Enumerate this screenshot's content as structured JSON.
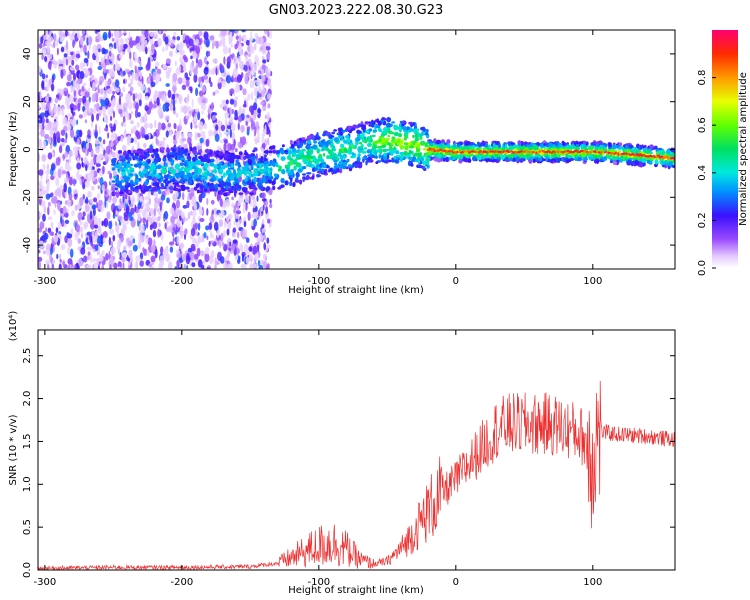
{
  "title": "GN03.2023.222.08.30.G23",
  "colors": {
    "snr_line": "#ee3030",
    "frame": "#000000"
  },
  "chart_data": [
    {
      "type": "heatmap",
      "xlabel": "Height of straight line (km)",
      "ylabel": "Frequency (Hz)",
      "xlim": [
        -305,
        160
      ],
      "ylim": [
        -50,
        50
      ],
      "xticks": [
        -300,
        -200,
        -100,
        0,
        100
      ],
      "xtick_labels": [
        "-300",
        "-200",
        "-100",
        "0",
        "100"
      ],
      "yticks": [
        -40,
        -20,
        0,
        20,
        40
      ],
      "ytick_labels": [
        "-40",
        "-20",
        "0",
        "20",
        "40"
      ],
      "colormap": "rainbow",
      "colorbar": {
        "label": "Normalized spectral amplitude",
        "range": [
          0,
          1
        ],
        "ticks": [
          0,
          0.2,
          0.4,
          0.6,
          0.8
        ],
        "tick_labels": [
          "0.0",
          "0.2",
          "0.4",
          "0.6",
          "0.8"
        ]
      },
      "ridge": {
        "x": [
          -250,
          -200,
          -170,
          -150,
          -120,
          -100,
          -80,
          -70,
          -60,
          -50,
          -30,
          -20,
          0,
          50,
          100,
          150,
          160
        ],
        "y": [
          -10,
          -8,
          -10,
          -10,
          -6,
          -2,
          0,
          2,
          3,
          4,
          2,
          0,
          -1,
          -1,
          -1,
          -3,
          -4
        ]
      },
      "grid": false
    },
    {
      "type": "line",
      "xlabel": "Height of straight line (km)",
      "ylabel": "SNR (10 * v/v)",
      "y_multiplier_label": "(x10⁴)",
      "xlim": [
        -305,
        160
      ],
      "ylim": [
        0,
        28000
      ],
      "xticks": [
        -300,
        -200,
        -100,
        0,
        100
      ],
      "xtick_labels": [
        "-300",
        "-200",
        "-100",
        "0",
        "100"
      ],
      "yticks": [
        0,
        5000,
        10000,
        15000,
        20000,
        25000
      ],
      "ytick_labels": [
        "0.0",
        "0.5",
        "1.0",
        "1.5",
        "2.0",
        "2.5"
      ],
      "series": [
        {
          "x": [
            -305,
            -250,
            -200,
            -150,
            -130,
            -115,
            -105,
            -100,
            -95,
            -90,
            -80,
            -70,
            -60,
            -50,
            -40,
            -30,
            -20,
            -10,
            0,
            10,
            20,
            30,
            40,
            50,
            60,
            70,
            80,
            90,
            95,
            98,
            100,
            102,
            105,
            110,
            120,
            130,
            140,
            150,
            160
          ],
          "y": [
            200,
            300,
            300,
            400,
            800,
            1800,
            2500,
            2800,
            3000,
            3200,
            2500,
            1200,
            700,
            1000,
            2500,
            4500,
            7000,
            9000,
            10500,
            12500,
            14500,
            16500,
            17000,
            17000,
            17000,
            17000,
            16500,
            16000,
            15000,
            14000,
            13000,
            15500,
            16200,
            16000,
            15800,
            15700,
            15600,
            15400,
            15200
          ]
        }
      ],
      "grid": false
    }
  ]
}
